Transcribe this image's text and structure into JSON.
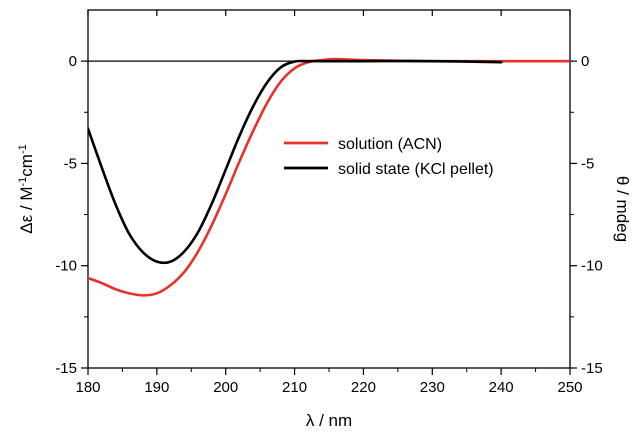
{
  "chart_data": {
    "type": "line",
    "xlabel": "λ / nm",
    "ylabel_left": "Δε / M-1cm-1",
    "ylabel_right": "θ / mdeg",
    "xlim": [
      180,
      250
    ],
    "ylim_left": [
      -15,
      2.5
    ],
    "ylim_right": [
      -15,
      2.5
    ],
    "x_ticks": [
      180,
      190,
      200,
      210,
      220,
      230,
      240,
      250
    ],
    "y_ticks_left": [
      -15,
      -10,
      -5,
      0
    ],
    "y_ticks_right": [
      -15,
      -10,
      -5,
      0
    ],
    "zero_line": true,
    "grid": false,
    "legend_position": "center-right",
    "series": [
      {
        "name": "solution (ACN)",
        "color": "#e8312a",
        "axis": "left",
        "x": [
          180,
          182,
          184,
          186,
          188,
          190,
          192,
          194,
          196,
          198,
          200,
          202,
          204,
          206,
          208,
          210,
          212,
          214,
          216,
          220,
          230,
          240,
          250
        ],
        "y": [
          -10.6,
          -10.85,
          -11.15,
          -11.35,
          -11.45,
          -11.35,
          -10.95,
          -10.3,
          -9.3,
          -8.0,
          -6.5,
          -4.9,
          -3.4,
          -2.05,
          -1.0,
          -0.35,
          -0.05,
          0.05,
          0.1,
          0.05,
          0.0,
          0.0,
          0.0
        ]
      },
      {
        "name": "solid state (KCl pellet)",
        "color": "#000000",
        "axis": "right",
        "x": [
          180,
          182,
          184,
          186,
          188,
          190,
          192,
          194,
          196,
          198,
          200,
          202,
          204,
          206,
          208,
          210,
          212,
          214,
          220,
          230,
          240
        ],
        "y": [
          -3.3,
          -5.2,
          -7.0,
          -8.45,
          -9.35,
          -9.8,
          -9.8,
          -9.3,
          -8.35,
          -6.95,
          -5.3,
          -3.65,
          -2.2,
          -1.05,
          -0.3,
          -0.02,
          0.0,
          0.0,
          0.0,
          0.0,
          -0.05
        ]
      }
    ]
  }
}
